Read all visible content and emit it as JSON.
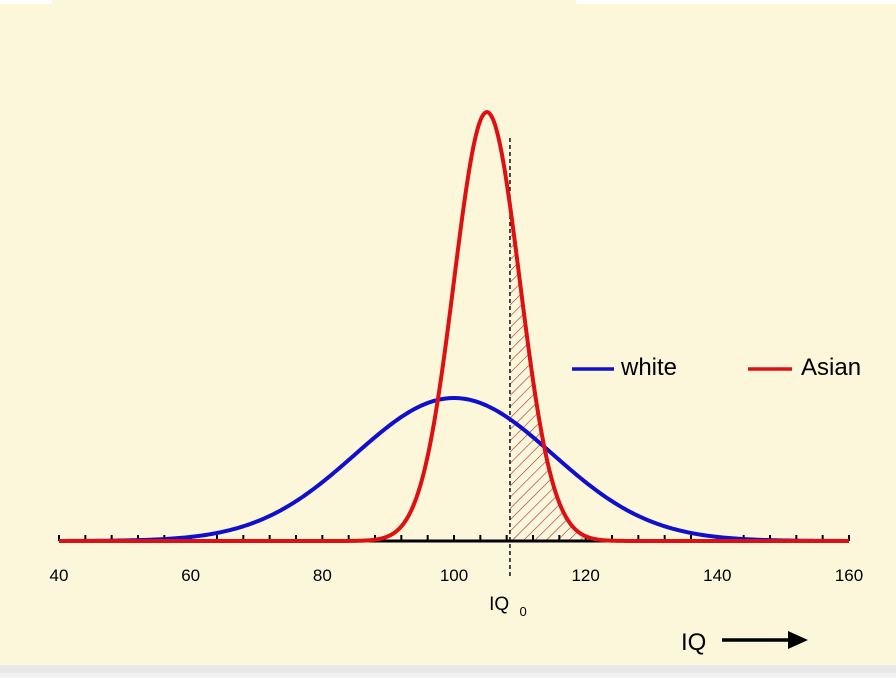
{
  "colors": {
    "background": "#fcf6db",
    "white_series": "#1010cc",
    "asian_series": "#dd1111",
    "axis": "#000000",
    "hatch": "#a03030"
  },
  "chart_data": {
    "type": "line",
    "title": "",
    "xlabel": "IQ",
    "ylabel": "",
    "xlim": [
      40,
      160
    ],
    "x_ticks": [
      "40",
      "60",
      "80",
      "100",
      "120",
      "140",
      "160"
    ],
    "threshold": {
      "label": "IQ",
      "subscript": "0",
      "x": 108.5
    },
    "series": [
      {
        "name": "white",
        "mean": 100,
        "sd": 15,
        "peak": 1.0,
        "color": "#1010cc"
      },
      {
        "name": "Asian",
        "mean": 105,
        "sd": 5,
        "peak": 3.0,
        "color": "#dd1111"
      }
    ],
    "shaded_region": {
      "series": "Asian",
      "from": 108.5,
      "to": 160
    },
    "legend_position": "right"
  }
}
